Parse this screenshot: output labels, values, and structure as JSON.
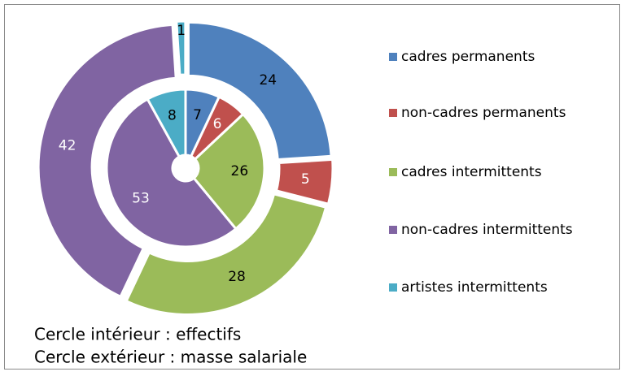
{
  "chart_data": {
    "type": "doughnut",
    "categories": [
      "cadres permanents",
      "non-cadres permanents",
      "cadres intermittents",
      "non-cadres intermittents",
      "artistes intermittents"
    ],
    "colors": [
      "#4f81bd",
      "#c0504d",
      "#9bbb59",
      "#8064a2",
      "#4bacc6"
    ],
    "series": [
      {
        "values": [
          7,
          6,
          26,
          53,
          8
        ]
      },
      {
        "values": [
          24,
          5,
          28,
          42,
          1
        ]
      }
    ],
    "annotations": [
      "Cercle intérieur : effectifs",
      "Cercle extérieur : masse salariale"
    ],
    "legend": "right"
  }
}
